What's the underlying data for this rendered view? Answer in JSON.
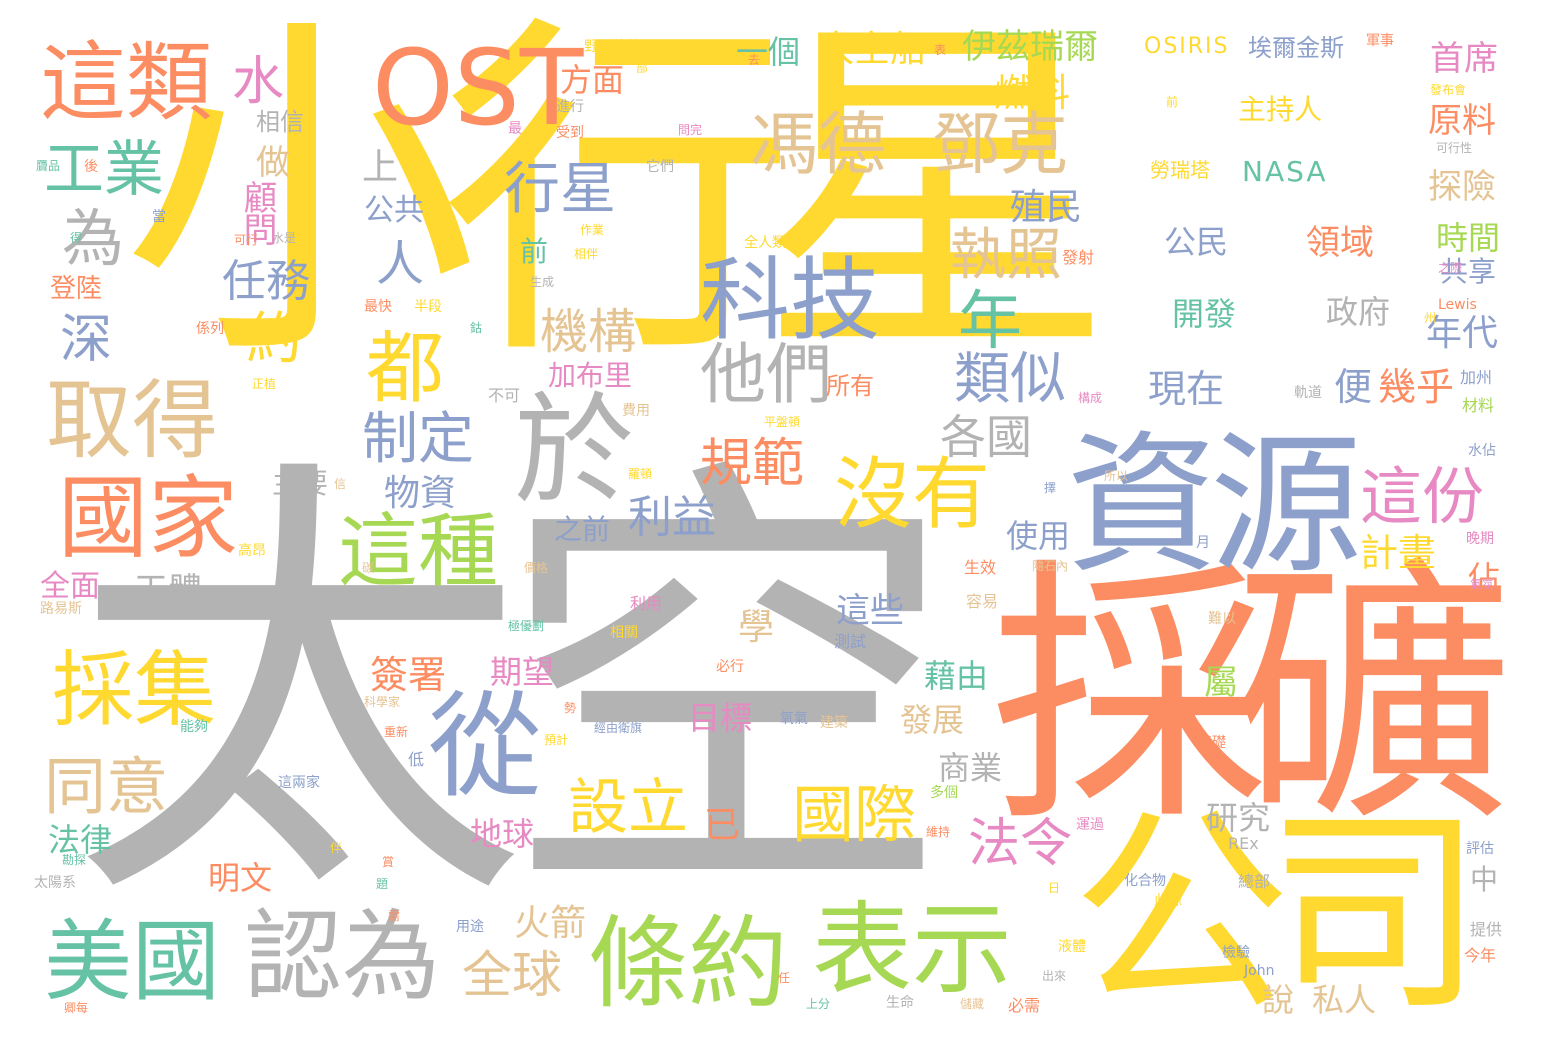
{
  "palette": {
    "yellow": "#ffd92f",
    "grey": "#b3b3b3",
    "orange": "#fc8d62",
    "blue": "#8da0cb",
    "green": "#a6d854",
    "teal": "#66c2a5",
    "tan": "#e5c494",
    "pink": "#e78ac3"
  },
  "words": [
    {
      "text": "小行星",
      "color": "yellow"
    },
    {
      "text": "太空",
      "color": "grey"
    },
    {
      "text": "採礦",
      "color": "orange"
    },
    {
      "text": "資源",
      "color": "blue"
    },
    {
      "text": "公司",
      "color": "yellow"
    },
    {
      "text": "OST",
      "color": "orange"
    },
    {
      "text": "這類",
      "color": "orange"
    },
    {
      "text": "取得",
      "color": "tan"
    },
    {
      "text": "國家",
      "color": "orange"
    },
    {
      "text": "於",
      "color": "grey"
    },
    {
      "text": "從",
      "color": "blue"
    },
    {
      "text": "條約",
      "color": "green"
    },
    {
      "text": "表示",
      "color": "green"
    },
    {
      "text": "美國",
      "color": "teal"
    },
    {
      "text": "認為",
      "color": "grey"
    },
    {
      "text": "科技",
      "color": "blue"
    },
    {
      "text": "馮德",
      "color": "tan"
    },
    {
      "text": "鄧克",
      "color": "tan"
    },
    {
      "text": "採集",
      "color": "yellow"
    },
    {
      "text": "這種",
      "color": "green"
    },
    {
      "text": "沒有",
      "color": "yellow"
    },
    {
      "text": "都",
      "color": "yellow"
    },
    {
      "text": "他們",
      "color": "grey"
    },
    {
      "text": "行星",
      "color": "blue"
    },
    {
      "text": "工業",
      "color": "teal"
    },
    {
      "text": "水",
      "color": "pink"
    },
    {
      "text": "為",
      "color": "grey"
    },
    {
      "text": "深",
      "color": "blue"
    },
    {
      "text": "約",
      "color": "yellow"
    },
    {
      "text": "任務",
      "color": "blue"
    },
    {
      "text": "顧問",
      "color": "pink"
    },
    {
      "text": "做",
      "color": "tan"
    },
    {
      "text": "相信",
      "color": "grey"
    },
    {
      "text": "人",
      "color": "blue"
    },
    {
      "text": "上",
      "color": "grey"
    },
    {
      "text": "公共",
      "color": "blue"
    },
    {
      "text": "制定",
      "color": "blue"
    },
    {
      "text": "同意",
      "color": "tan"
    },
    {
      "text": "設立",
      "color": "yellow"
    },
    {
      "text": "已",
      "color": "orange"
    },
    {
      "text": "國際",
      "color": "yellow"
    },
    {
      "text": "法令",
      "color": "pink"
    },
    {
      "text": "全球",
      "color": "tan"
    },
    {
      "text": "火箭",
      "color": "tan"
    },
    {
      "text": "規範",
      "color": "orange"
    },
    {
      "text": "利益",
      "color": "blue"
    },
    {
      "text": "物資",
      "color": "blue"
    },
    {
      "text": "類似",
      "color": "blue"
    },
    {
      "text": "各國",
      "color": "grey"
    },
    {
      "text": "執照",
      "color": "tan"
    },
    {
      "text": "年",
      "color": "teal"
    },
    {
      "text": "機構",
      "color": "tan"
    },
    {
      "text": "這份",
      "color": "pink"
    },
    {
      "text": "計畫",
      "color": "yellow"
    },
    {
      "text": "首席",
      "color": "pink"
    },
    {
      "text": "原料",
      "color": "orange"
    },
    {
      "text": "探險",
      "color": "tan"
    },
    {
      "text": "時間",
      "color": "green"
    },
    {
      "text": "共享",
      "color": "blue"
    },
    {
      "text": "年代",
      "color": "blue"
    },
    {
      "text": "幾乎",
      "color": "orange"
    },
    {
      "text": "便",
      "color": "blue"
    },
    {
      "text": "現在",
      "color": "blue"
    },
    {
      "text": "政府",
      "color": "grey"
    },
    {
      "text": "開發",
      "color": "teal"
    },
    {
      "text": "領域",
      "color": "orange"
    },
    {
      "text": "公民",
      "color": "blue"
    },
    {
      "text": "殖民",
      "color": "blue"
    },
    {
      "text": "燃料",
      "color": "yellow"
    },
    {
      "text": "伊茲瑞爾",
      "color": "green"
    },
    {
      "text": "太空船",
      "color": "yellow"
    },
    {
      "text": "一個",
      "color": "teal"
    },
    {
      "text": "方面",
      "color": "orange"
    },
    {
      "text": "NASA",
      "color": "teal"
    },
    {
      "text": "主持人",
      "color": "yellow"
    },
    {
      "text": "OSIRIS",
      "color": "yellow"
    },
    {
      "text": "埃爾金斯",
      "color": "blue"
    },
    {
      "text": "勞瑞塔",
      "color": "yellow"
    },
    {
      "text": "登陸",
      "color": "orange"
    },
    {
      "text": "全面",
      "color": "pink"
    },
    {
      "text": "天體",
      "color": "grey"
    },
    {
      "text": "主要",
      "color": "grey"
    },
    {
      "text": "加布里",
      "color": "pink"
    },
    {
      "text": "前",
      "color": "teal"
    },
    {
      "text": "之前",
      "color": "blue"
    },
    {
      "text": "期望",
      "color": "pink"
    },
    {
      "text": "簽署",
      "color": "orange"
    },
    {
      "text": "學",
      "color": "tan"
    },
    {
      "text": "目標",
      "color": "pink"
    },
    {
      "text": "地球",
      "color": "pink"
    },
    {
      "text": "法律",
      "color": "teal"
    },
    {
      "text": "明文",
      "color": "orange"
    },
    {
      "text": "藉由",
      "color": "teal"
    },
    {
      "text": "發展",
      "color": "tan"
    },
    {
      "text": "商業",
      "color": "grey"
    },
    {
      "text": "這些",
      "color": "blue"
    },
    {
      "text": "屬",
      "color": "green"
    },
    {
      "text": "使用",
      "color": "blue"
    },
    {
      "text": "研究",
      "color": "grey"
    },
    {
      "text": "佔",
      "color": "orange"
    },
    {
      "text": "中",
      "color": "grey"
    },
    {
      "text": "說",
      "color": "tan"
    },
    {
      "text": "私人",
      "color": "tan"
    },
    {
      "text": "所有",
      "color": "orange"
    },
    {
      "text": "不可",
      "color": "grey"
    },
    {
      "text": "費用",
      "color": "tan"
    },
    {
      "text": "生效",
      "color": "orange"
    },
    {
      "text": "容易",
      "color": "tan"
    },
    {
      "text": "測試",
      "color": "blue"
    },
    {
      "text": "氧氣",
      "color": "blue"
    },
    {
      "text": "建築",
      "color": "tan"
    },
    {
      "text": "基礎",
      "color": "orange"
    },
    {
      "text": "運過",
      "color": "pink"
    },
    {
      "text": "評估",
      "color": "blue"
    },
    {
      "text": "提供",
      "color": "grey"
    },
    {
      "text": "今年",
      "color": "orange"
    },
    {
      "text": "加州",
      "color": "blue"
    },
    {
      "text": "材料",
      "color": "green"
    },
    {
      "text": "Lewis",
      "color": "orange"
    },
    {
      "text": "John",
      "color": "blue"
    },
    {
      "text": "REx",
      "color": "grey"
    },
    {
      "text": "野心勃勃",
      "color": "yellow"
    },
    {
      "text": "軍事",
      "color": "orange"
    },
    {
      "text": "可行性",
      "color": "grey"
    },
    {
      "text": "發射",
      "color": "orange"
    },
    {
      "text": "進行",
      "color": "grey"
    },
    {
      "text": "受到",
      "color": "orange"
    },
    {
      "text": "它們",
      "color": "grey"
    },
    {
      "text": "作業",
      "color": "yellow"
    },
    {
      "text": "全人類",
      "color": "yellow"
    },
    {
      "text": "生成",
      "color": "grey"
    },
    {
      "text": "半段",
      "color": "yellow"
    },
    {
      "text": "最快",
      "color": "orange"
    },
    {
      "text": "係列",
      "color": "orange"
    },
    {
      "text": "正植",
      "color": "yellow"
    },
    {
      "text": "水是",
      "color": "grey"
    },
    {
      "text": "可行",
      "color": "orange"
    },
    {
      "text": "高昂",
      "color": "yellow"
    },
    {
      "text": "路易斯",
      "color": "tan"
    },
    {
      "text": "能夠",
      "color": "teal"
    },
    {
      "text": "太陽系",
      "color": "grey"
    },
    {
      "text": "科學家",
      "color": "tan"
    },
    {
      "text": "這兩家",
      "color": "blue"
    },
    {
      "text": "利用",
      "color": "pink"
    },
    {
      "text": "相關",
      "color": "yellow"
    },
    {
      "text": "必行",
      "color": "orange"
    },
    {
      "text": "預計",
      "color": "yellow"
    },
    {
      "text": "低",
      "color": "blue"
    },
    {
      "text": "多個",
      "color": "green"
    },
    {
      "text": "維持",
      "color": "orange"
    },
    {
      "text": "化合物",
      "color": "blue"
    },
    {
      "text": "此條",
      "color": "yellow"
    },
    {
      "text": "總部",
      "color": "grey"
    },
    {
      "text": "用途",
      "color": "blue"
    },
    {
      "text": "上分",
      "color": "teal"
    },
    {
      "text": "生命",
      "color": "grey"
    },
    {
      "text": "儲藏",
      "color": "tan"
    },
    {
      "text": "必需",
      "color": "orange"
    },
    {
      "text": "出來",
      "color": "grey"
    },
    {
      "text": "液體",
      "color": "yellow"
    },
    {
      "text": "檢驗",
      "color": "blue"
    },
    {
      "text": "晚期",
      "color": "pink"
    },
    {
      "text": "氣氛",
      "color": "pink"
    },
    {
      "text": "水佔",
      "color": "blue"
    },
    {
      "text": "難以",
      "color": "tan"
    },
    {
      "text": "月",
      "color": "blue"
    },
    {
      "text": "構成",
      "color": "pink"
    },
    {
      "text": "發布會",
      "color": "yellow"
    },
    {
      "text": "之際",
      "color": "pink"
    },
    {
      "text": "州",
      "color": "yellow"
    },
    {
      "text": "軌道",
      "color": "grey"
    },
    {
      "text": "前",
      "color": "yellow"
    },
    {
      "text": "最",
      "color": "pink"
    },
    {
      "text": "問完",
      "color": "pink"
    },
    {
      "text": "所以",
      "color": "tan"
    },
    {
      "text": "擇",
      "color": "blue"
    },
    {
      "text": "後",
      "color": "orange"
    },
    {
      "text": "贗品",
      "color": "teal"
    },
    {
      "text": "當",
      "color": "blue"
    },
    {
      "text": "鈷",
      "color": "teal"
    },
    {
      "text": "届",
      "color": "yellow"
    },
    {
      "text": "部",
      "color": "yellow"
    },
    {
      "text": "表",
      "color": "orange"
    },
    {
      "text": "去",
      "color": "orange"
    },
    {
      "text": "相伴",
      "color": "yellow"
    },
    {
      "text": "碳",
      "color": "tan"
    },
    {
      "text": "日",
      "color": "yellow"
    },
    {
      "text": "任",
      "color": "orange"
    },
    {
      "text": "題",
      "color": "teal"
    },
    {
      "text": "賞",
      "color": "orange"
    },
    {
      "text": "勢",
      "color": "orange"
    },
    {
      "text": "經由衛旗",
      "color": "blue"
    },
    {
      "text": "重新",
      "color": "orange"
    },
    {
      "text": "極優劃",
      "color": "teal"
    },
    {
      "text": "隨石內",
      "color": "tan"
    },
    {
      "text": "羅頓",
      "color": "yellow"
    },
    {
      "text": "平盤頓",
      "color": "yellow"
    },
    {
      "text": "勘探",
      "color": "teal"
    },
    {
      "text": "卿每",
      "color": "orange"
    },
    {
      "text": "得",
      "color": "teal"
    },
    {
      "text": "價格",
      "color": "tan"
    },
    {
      "text": "伴",
      "color": "yellow"
    },
    {
      "text": "信",
      "color": "tan"
    },
    {
      "text": "需",
      "color": "orange"
    }
  ]
}
